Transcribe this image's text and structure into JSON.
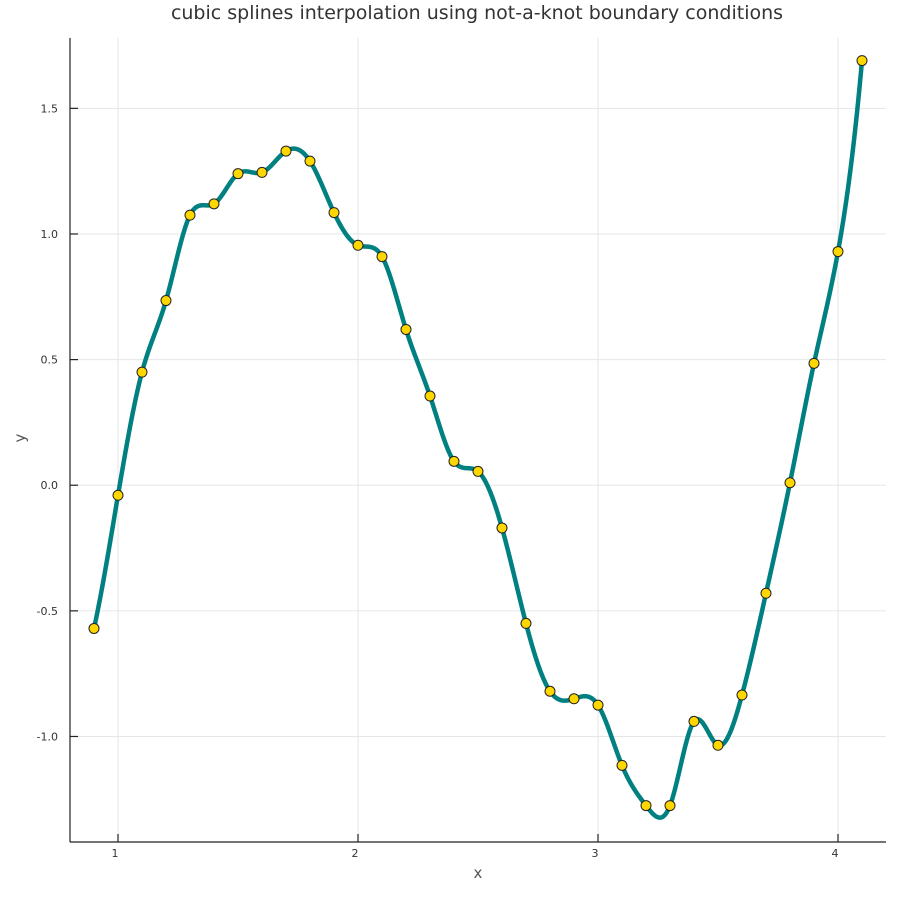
{
  "chart_data": {
    "type": "line",
    "title": "cubic splines interpolation using not-a-knot boundary conditions",
    "xlabel": "x",
    "ylabel": "y",
    "xlim": [
      0.8,
      4.2
    ],
    "ylim": [
      -1.42,
      1.78
    ],
    "x_ticks": [
      1,
      2,
      3,
      4
    ],
    "x_tick_labels": [
      "1",
      "2",
      "3",
      "4"
    ],
    "y_ticks": [
      -1.0,
      -0.5,
      0.0,
      0.5,
      1.0,
      1.5
    ],
    "y_tick_labels": [
      "-1.0",
      "-0.5",
      "0.0",
      "0.5",
      "1.0",
      "1.5"
    ],
    "grid": true,
    "legend": "none",
    "boundary_condition": "not-a-knot",
    "colors": {
      "spline": "#008080",
      "marker_fill": "#FFD700",
      "marker_edge": "#222222"
    },
    "series": [
      {
        "kind": "spline",
        "x": [
          0.9,
          1.0,
          1.1,
          1.2,
          1.3,
          1.4,
          1.5,
          1.6,
          1.7,
          1.8,
          1.9,
          2.0,
          2.1,
          2.2,
          2.3,
          2.4,
          2.5,
          2.6,
          2.7,
          2.8,
          2.9,
          3.0,
          3.1,
          3.2,
          3.3,
          3.4,
          3.5,
          3.6,
          3.7,
          3.8,
          3.9,
          4.0,
          4.1
        ],
        "y": [
          -0.57,
          -0.04,
          0.45,
          0.735,
          1.075,
          1.12,
          1.24,
          1.245,
          1.33,
          1.29,
          1.085,
          0.955,
          0.91,
          0.62,
          0.355,
          0.095,
          0.055,
          -0.17,
          -0.55,
          -0.82,
          -0.85,
          -0.875,
          -1.115,
          -1.275,
          -1.275,
          -0.94,
          -1.035,
          -0.835,
          -0.43,
          0.01,
          0.485,
          0.93,
          1.69
        ]
      },
      {
        "kind": "markers",
        "x": [
          0.9,
          1.0,
          1.1,
          1.2,
          1.3,
          1.4,
          1.5,
          1.6,
          1.7,
          1.8,
          1.9,
          2.0,
          2.1,
          2.2,
          2.3,
          2.4,
          2.5,
          2.6,
          2.7,
          2.8,
          2.9,
          3.0,
          3.1,
          3.2,
          3.3,
          3.4,
          3.5,
          3.6,
          3.7,
          3.8,
          3.9,
          4.0,
          4.1
        ],
        "y": [
          -0.57,
          -0.04,
          0.45,
          0.735,
          1.075,
          1.12,
          1.24,
          1.245,
          1.33,
          1.29,
          1.085,
          0.955,
          0.91,
          0.62,
          0.355,
          0.095,
          0.055,
          -0.17,
          -0.55,
          -0.82,
          -0.85,
          -0.875,
          -1.115,
          -1.275,
          -1.275,
          -0.94,
          -1.035,
          -0.835,
          -0.43,
          0.01,
          0.485,
          0.93,
          1.69
        ]
      }
    ]
  }
}
